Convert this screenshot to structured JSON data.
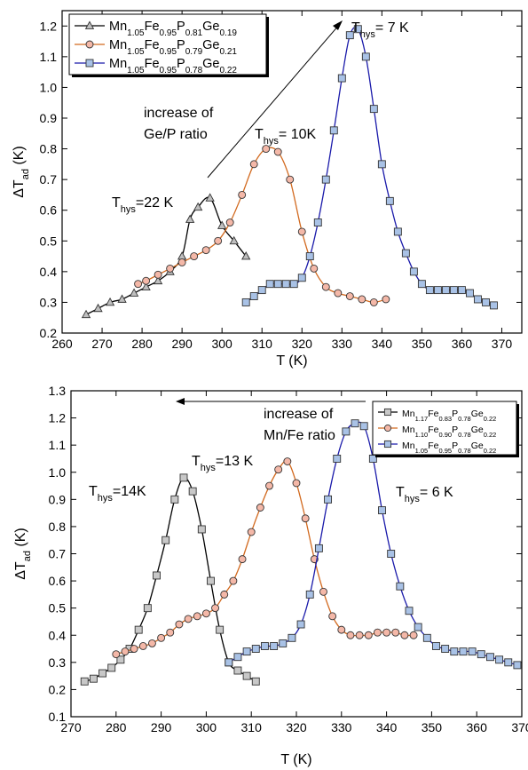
{
  "chart_data": [
    {
      "type": "line",
      "xlabel": "T (K)",
      "ylabel": "ΔTad (K)",
      "ylabel_main": "ΔT",
      "ylabel_sub": "ad",
      "ylabel_unit": "(K)",
      "xlim": [
        260,
        375
      ],
      "ylim": [
        0.2,
        1.25
      ],
      "xticks": [
        260,
        270,
        280,
        290,
        300,
        310,
        320,
        330,
        340,
        350,
        360,
        370
      ],
      "yticks": [
        0.2,
        0.3,
        0.4,
        0.5,
        0.6,
        0.7,
        0.8,
        0.9,
        1.0,
        1.1,
        1.2
      ],
      "legend_position": "top-left",
      "series": [
        {
          "name": "Mn1.05Fe0.95P0.81Ge0.19",
          "name_parts": [
            [
              "Mn",
              ""
            ],
            [
              "1.05",
              "sub"
            ],
            [
              "Fe",
              ""
            ],
            [
              "0.95",
              "sub"
            ],
            [
              "P",
              ""
            ],
            [
              "0.81",
              "sub"
            ],
            [
              "Ge",
              ""
            ],
            [
              "0.19",
              "sub"
            ]
          ],
          "marker": "triangle",
          "line_color": "#000000",
          "marker_fill": "#bfbfbf",
          "x": [
            266,
            269,
            272,
            275,
            278,
            281,
            284,
            287,
            290,
            292,
            294,
            297,
            300,
            303,
            306
          ],
          "y": [
            0.26,
            0.28,
            0.3,
            0.31,
            0.33,
            0.35,
            0.37,
            0.4,
            0.45,
            0.57,
            0.61,
            0.64,
            0.55,
            0.5,
            0.45
          ]
        },
        {
          "name": "Mn1.05Fe0.95P0.79Ge0.21",
          "name_parts": [
            [
              "Mn",
              ""
            ],
            [
              "1.05",
              "sub"
            ],
            [
              "Fe",
              ""
            ],
            [
              "0.95",
              "sub"
            ],
            [
              "P",
              ""
            ],
            [
              "0.79",
              "sub"
            ],
            [
              "Ge",
              ""
            ],
            [
              "0.21",
              "sub"
            ]
          ],
          "marker": "circle",
          "line_color": "#d2691e",
          "marker_fill": "#f4b8a8",
          "x": [
            279,
            281,
            284,
            287,
            290,
            293,
            296,
            299,
            302,
            305,
            308,
            311,
            314,
            317,
            320,
            323,
            326,
            329,
            332,
            335,
            338,
            341
          ],
          "y": [
            0.36,
            0.37,
            0.39,
            0.41,
            0.43,
            0.45,
            0.47,
            0.5,
            0.56,
            0.65,
            0.75,
            0.8,
            0.79,
            0.7,
            0.53,
            0.41,
            0.35,
            0.33,
            0.32,
            0.31,
            0.3,
            0.31
          ]
        },
        {
          "name": "Mn1.05Fe0.95P0.78Ge0.22",
          "name_parts": [
            [
              "Mn",
              ""
            ],
            [
              "1.05",
              "sub"
            ],
            [
              "Fe",
              ""
            ],
            [
              "0.95",
              "sub"
            ],
            [
              "P",
              ""
            ],
            [
              "0.78",
              "sub"
            ],
            [
              "Ge",
              ""
            ],
            [
              "0.22",
              "sub"
            ]
          ],
          "marker": "square",
          "line_color": "#1a1aaa",
          "marker_fill": "#a9c2e6",
          "x": [
            306,
            308,
            310,
            312,
            314,
            316,
            318,
            320,
            322,
            324,
            326,
            328,
            330,
            332,
            334,
            336,
            338,
            340,
            342,
            344,
            346,
            348,
            350,
            352,
            354,
            356,
            358,
            360,
            362,
            364,
            366,
            368
          ],
          "y": [
            0.3,
            0.32,
            0.34,
            0.36,
            0.36,
            0.36,
            0.36,
            0.38,
            0.45,
            0.56,
            0.7,
            0.86,
            1.03,
            1.17,
            1.19,
            1.1,
            0.93,
            0.75,
            0.63,
            0.53,
            0.46,
            0.4,
            0.36,
            0.34,
            0.34,
            0.34,
            0.34,
            0.34,
            0.33,
            0.31,
            0.3,
            0.29
          ]
        }
      ],
      "annotations": [
        {
          "main": "T",
          "sub": "hys",
          "rest": "=22 K"
        },
        {
          "main": "T",
          "sub": "hys",
          "rest": "= 10K"
        },
        {
          "main": "T",
          "sub": "hys",
          "rest": "= 7 K"
        },
        {
          "text_line1": "increase of",
          "text_line2": "Ge/P ratio"
        }
      ]
    },
    {
      "type": "line",
      "xlabel": "T (K)",
      "ylabel": "ΔTad (K)",
      "ylabel_main": "ΔT",
      "ylabel_sub": "ad",
      "ylabel_unit": "(K)",
      "xlim": [
        270,
        370
      ],
      "ylim": [
        0.1,
        1.3
      ],
      "xticks": [
        270,
        280,
        290,
        300,
        310,
        320,
        330,
        340,
        350,
        360,
        370
      ],
      "yticks": [
        0.1,
        0.2,
        0.3,
        0.4,
        0.5,
        0.6,
        0.7,
        0.8,
        0.9,
        1.0,
        1.1,
        1.2,
        1.3
      ],
      "legend_position": "top-right",
      "series": [
        {
          "name": "Mn1.17Fe0.83P0.78Ge0.22",
          "name_parts": [
            [
              "Mn",
              ""
            ],
            [
              "1.17",
              "sub"
            ],
            [
              "Fe",
              ""
            ],
            [
              "0.83",
              "sub"
            ],
            [
              "P",
              ""
            ],
            [
              "0.78",
              "sub"
            ],
            [
              "Ge",
              ""
            ],
            [
              "0.22",
              "sub"
            ]
          ],
          "marker": "square",
          "line_color": "#000000",
          "marker_fill": "#c8c8c8",
          "x": [
            273,
            275,
            277,
            279,
            281,
            283,
            285,
            287,
            289,
            291,
            293,
            295,
            297,
            299,
            301,
            303,
            305,
            307,
            309,
            311
          ],
          "y": [
            0.23,
            0.24,
            0.26,
            0.28,
            0.31,
            0.35,
            0.42,
            0.5,
            0.62,
            0.75,
            0.9,
            0.98,
            0.93,
            0.79,
            0.6,
            0.42,
            0.3,
            0.27,
            0.25,
            0.23
          ]
        },
        {
          "name": "Mn1.10Fe0.90P0.78Ge0.22",
          "name_parts": [
            [
              "Mn",
              ""
            ],
            [
              "1.10",
              "sub"
            ],
            [
              "Fe",
              ""
            ],
            [
              "0.90",
              "sub"
            ],
            [
              "P",
              ""
            ],
            [
              "0.78",
              "sub"
            ],
            [
              "Ge",
              ""
            ],
            [
              "0.22",
              "sub"
            ]
          ],
          "marker": "circle",
          "line_color": "#d2691e",
          "marker_fill": "#f4b8a8",
          "x": [
            280,
            282,
            284,
            286,
            288,
            290,
            292,
            294,
            296,
            298,
            300,
            302,
            304,
            306,
            308,
            310,
            312,
            314,
            316,
            318,
            320,
            322,
            324,
            326,
            328,
            330,
            332,
            334,
            336,
            338,
            340,
            342,
            344,
            346
          ],
          "y": [
            0.33,
            0.34,
            0.35,
            0.36,
            0.37,
            0.39,
            0.41,
            0.44,
            0.46,
            0.47,
            0.48,
            0.5,
            0.55,
            0.6,
            0.68,
            0.78,
            0.87,
            0.95,
            1.01,
            1.04,
            0.96,
            0.83,
            0.68,
            0.56,
            0.47,
            0.42,
            0.4,
            0.4,
            0.4,
            0.41,
            0.41,
            0.41,
            0.4,
            0.4
          ]
        },
        {
          "name": "Mn1.05Fe0.95P0.78Ge0.22",
          "name_parts": [
            [
              "Mn",
              ""
            ],
            [
              "1.05",
              "sub"
            ],
            [
              "Fe",
              ""
            ],
            [
              "0.95",
              "sub"
            ],
            [
              "P",
              ""
            ],
            [
              "0.78",
              "sub"
            ],
            [
              "Ge",
              ""
            ],
            [
              "0.22",
              "sub"
            ]
          ],
          "marker": "square",
          "line_color": "#1a1aaa",
          "marker_fill": "#a9c2e6",
          "x": [
            305,
            307,
            309,
            311,
            313,
            315,
            317,
            319,
            321,
            323,
            325,
            327,
            329,
            331,
            333,
            335,
            337,
            339,
            341,
            343,
            345,
            347,
            349,
            351,
            353,
            355,
            357,
            359,
            361,
            363,
            365,
            367,
            369
          ],
          "y": [
            0.3,
            0.32,
            0.34,
            0.35,
            0.36,
            0.36,
            0.37,
            0.39,
            0.44,
            0.55,
            0.72,
            0.9,
            1.05,
            1.15,
            1.18,
            1.17,
            1.05,
            0.86,
            0.7,
            0.58,
            0.49,
            0.43,
            0.39,
            0.36,
            0.35,
            0.34,
            0.34,
            0.34,
            0.33,
            0.32,
            0.31,
            0.3,
            0.29
          ]
        }
      ],
      "annotations": [
        {
          "main": "T",
          "sub": "hys",
          "rest": "=14K"
        },
        {
          "main": "T",
          "sub": "hys",
          "rest": "=13 K"
        },
        {
          "main": "T",
          "sub": "hys",
          "rest": "= 6 K"
        },
        {
          "text_line1": "increase of",
          "text_line2": "Mn/Fe ratio"
        }
      ]
    }
  ]
}
